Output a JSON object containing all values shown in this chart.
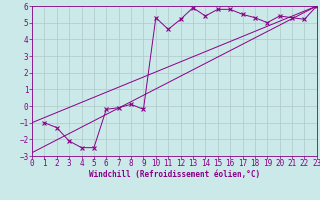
{
  "xlabel": "Windchill (Refroidissement éolien,°C)",
  "background_color": "#cce9e9",
  "grid_color": "#b0c8c8",
  "line_color": "#880088",
  "x_min": 0,
  "x_max": 23,
  "y_min": -3,
  "y_max": 6,
  "curve_x": [
    1,
    2,
    3,
    4,
    5,
    6,
    7,
    8,
    9,
    10,
    11,
    12,
    13,
    14,
    15,
    16,
    17,
    18,
    19,
    20,
    21,
    22,
    23
  ],
  "curve_y": [
    -1.0,
    -1.3,
    -2.1,
    -2.5,
    -2.5,
    -0.2,
    -0.1,
    0.1,
    -0.2,
    5.3,
    4.6,
    5.2,
    5.9,
    5.4,
    5.8,
    5.8,
    5.5,
    5.3,
    5.0,
    5.4,
    5.3,
    5.2,
    6.0
  ],
  "line1_x": [
    0,
    23
  ],
  "line1_y": [
    -2.8,
    6.0
  ],
  "line2_x": [
    0,
    23
  ],
  "line2_y": [
    -1.0,
    6.0
  ],
  "tick_fontsize": 5.5,
  "xlabel_fontsize": 5.5,
  "figwidth": 3.2,
  "figheight": 2.0,
  "dpi": 100
}
